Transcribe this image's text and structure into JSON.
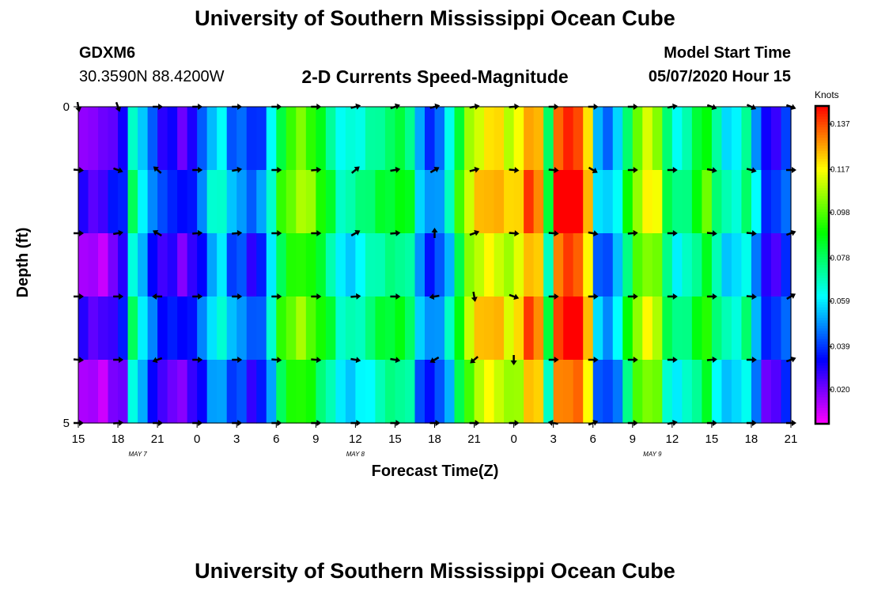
{
  "header": {
    "main_title": "University of Southern Mississippi Ocean Cube",
    "station_id": "GDXM6",
    "station_coords": "30.3590N 88.4200W",
    "plot_title": "2-D Currents Speed-Magnitude",
    "model_start_label": "Model Start Time",
    "model_start_value": "05/07/2020 Hour 15"
  },
  "footer": {
    "title": "University of Southern Mississippi Ocean Cube"
  },
  "chart_data": {
    "type": "heatmap",
    "title": "2-D Currents Speed-Magnitude",
    "xlabel": "Forecast Time(Z)",
    "ylabel": "Depth (ft)",
    "x_tick_labels": [
      "15",
      "18",
      "21",
      "0",
      "3",
      "6",
      "9",
      "12",
      "15",
      "18",
      "21",
      "0",
      "3",
      "6",
      "9",
      "12",
      "15",
      "18",
      "21"
    ],
    "x_tick_hours": [
      0,
      3,
      6,
      9,
      12,
      15,
      18,
      21,
      24,
      27,
      30,
      33,
      36,
      39,
      42,
      45,
      48,
      51,
      54
    ],
    "date_labels": [
      {
        "label": "MAY 7",
        "hour": 4.5
      },
      {
        "label": "MAY 8",
        "hour": 21
      },
      {
        "label": "MAY 9",
        "hour": 43.5
      }
    ],
    "y_tick_labels": [
      "0",
      "5"
    ],
    "ylim": [
      0,
      5
    ],
    "xlim_hours": [
      0,
      54
    ],
    "colorbar": {
      "units": "Knots",
      "ticks": [
        "0.137",
        "0.117",
        "0.098",
        "0.078",
        "0.059",
        "0.039",
        "0.020"
      ],
      "tick_values": [
        0.137,
        0.117,
        0.098,
        0.078,
        0.059,
        0.039,
        0.02
      ],
      "range": [
        0.005,
        0.145
      ]
    },
    "depth_levels": [
      0,
      1,
      2,
      3,
      4,
      5
    ],
    "column_speeds_knots": [
      0.02,
      0.018,
      0.018,
      0.024,
      0.03,
      0.07,
      0.055,
      0.04,
      0.03,
      0.03,
      0.024,
      0.03,
      0.04,
      0.055,
      0.06,
      0.045,
      0.045,
      0.035,
      0.04,
      0.06,
      0.085,
      0.095,
      0.1,
      0.095,
      0.085,
      0.075,
      0.062,
      0.062,
      0.065,
      0.07,
      0.075,
      0.078,
      0.08,
      0.075,
      0.05,
      0.04,
      0.045,
      0.06,
      0.085,
      0.105,
      0.115,
      0.12,
      0.118,
      0.11,
      0.115,
      0.13,
      0.125,
      0.075,
      0.135,
      0.14,
      0.14,
      0.12,
      0.05,
      0.045,
      0.055,
      0.08,
      0.1,
      0.11,
      0.105,
      0.075,
      0.065,
      0.07,
      0.08,
      0.09,
      0.07,
      0.06,
      0.06,
      0.07,
      0.05,
      0.03,
      0.03,
      0.04
    ],
    "row_offsets_knots": [
      0.0,
      0.008,
      -0.004,
      0.006,
      -0.006
    ],
    "arrow_times_hours": [
      0,
      3,
      6,
      9,
      12,
      15,
      18,
      21,
      24,
      27,
      30,
      33,
      36,
      39,
      42,
      45,
      48,
      51,
      54
    ],
    "arrow_depths_ft": [
      0,
      1,
      2,
      3,
      4,
      5
    ],
    "arrow_angles_deg": [
      [
        80,
        70,
        0,
        0,
        0,
        0,
        0,
        -15,
        -20,
        -15,
        -10,
        -5,
        0,
        0,
        0,
        -10,
        20,
        25,
        20
      ],
      [
        5,
        20,
        -140,
        0,
        -10,
        0,
        -5,
        -40,
        -10,
        -30,
        -15,
        5,
        5,
        30,
        0,
        0,
        10,
        15,
        0
      ],
      [
        0,
        -10,
        -150,
        -5,
        -5,
        0,
        0,
        -30,
        -5,
        -90,
        -20,
        5,
        5,
        10,
        -5,
        0,
        5,
        5,
        -20
      ],
      [
        0,
        0,
        180,
        0,
        0,
        0,
        0,
        -5,
        0,
        170,
        80,
        20,
        0,
        0,
        0,
        0,
        0,
        5,
        -30
      ],
      [
        5,
        0,
        160,
        0,
        0,
        5,
        5,
        10,
        10,
        150,
        140,
        90,
        0,
        0,
        0,
        0,
        -5,
        0,
        -20
      ],
      [
        0,
        -5,
        0,
        0,
        0,
        0,
        0,
        0,
        0,
        0,
        0,
        0,
        -170,
        -20,
        0,
        -10,
        0,
        0,
        0
      ]
    ]
  }
}
